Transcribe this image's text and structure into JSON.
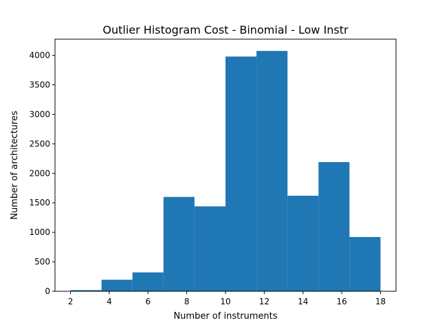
{
  "chart_data": {
    "type": "bar",
    "title": "Outlier Histogram Cost - Binomial - Low Instr",
    "xlabel": "Number of instruments",
    "ylabel": "Number of architectures",
    "bin_edges": [
      2,
      3.6,
      5.2,
      6.8,
      8.4,
      10,
      11.6,
      13.2,
      14.8,
      16.4,
      18
    ],
    "values": [
      20,
      195,
      320,
      1600,
      1440,
      3980,
      4075,
      1620,
      2190,
      920
    ],
    "xlim": [
      1.2,
      18.8
    ],
    "ylim": [
      0,
      4275
    ],
    "xticks": [
      2,
      4,
      6,
      8,
      10,
      12,
      14,
      16,
      18
    ],
    "yticks": [
      0,
      500,
      1000,
      1500,
      2000,
      2500,
      3000,
      3500,
      4000
    ],
    "bar_color": "#1f77b4",
    "grid": false
  }
}
